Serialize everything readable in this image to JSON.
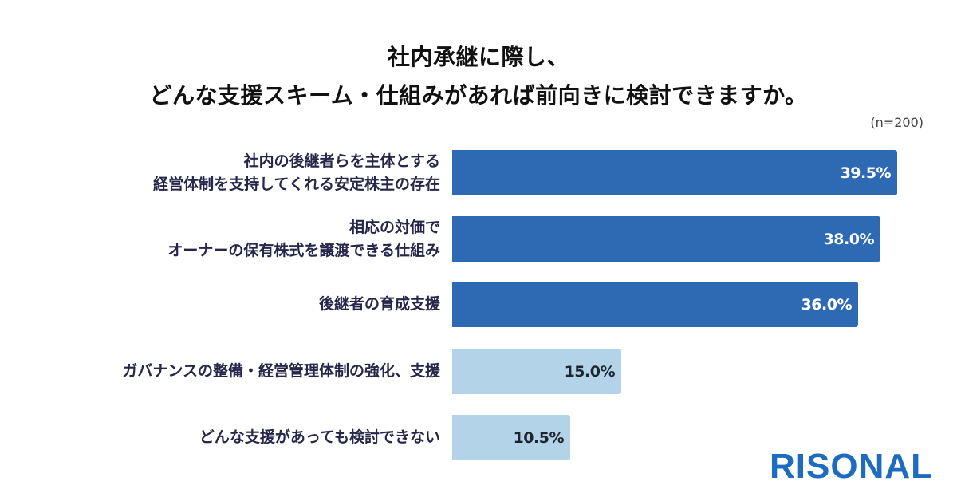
{
  "title": {
    "line1": "社内承継に際し、",
    "line2": "どんな支援スキーム・仕組みがあれば前向きに検討できますか。"
  },
  "sample_size": "(n=200)",
  "logo": "RISONAL",
  "colors": {
    "dark_bar": "#2e6ab3",
    "light_bar": "#b2d3e8",
    "logo": "#1e6cc0"
  },
  "rows": [
    {
      "label_lines": [
        "社内の後継者らを主体とする",
        "経営体制を支持してくれる安定株主の存在"
      ],
      "value_label": "39.5%",
      "style": "dark"
    },
    {
      "label_lines": [
        "相応の対価で",
        "オーナーの保有株式を譲渡できる仕組み"
      ],
      "value_label": "38.0%",
      "style": "dark"
    },
    {
      "label_lines": [
        "後継者の育成支援"
      ],
      "value_label": "36.0%",
      "style": "dark"
    },
    {
      "label_lines": [
        "ガバナンスの整備・経営管理体制の強化、支援"
      ],
      "value_label": "15.0%",
      "style": "light"
    },
    {
      "label_lines": [
        "どんな支援があっても検討できない"
      ],
      "value_label": "10.5%",
      "style": "light"
    }
  ],
  "chart_data": {
    "type": "bar",
    "orientation": "horizontal",
    "title": "社内承継に際し、どんな支援スキーム・仕組みがあれば前向きに検討できますか。",
    "subtitle": "(n=200)",
    "categories": [
      "社内の後継者らを主体とする経営体制を支持してくれる安定株主の存在",
      "相応の対価でオーナーの保有株式を譲渡できる仕組み",
      "後継者の育成支援",
      "ガバナンスの整備・経営管理体制の強化、支援",
      "どんな支援があっても検討できない"
    ],
    "values": [
      39.5,
      38.0,
      36.0,
      15.0,
      10.5
    ],
    "unit": "%",
    "xlabel": "",
    "ylabel": "",
    "grid": false,
    "legend": null
  }
}
